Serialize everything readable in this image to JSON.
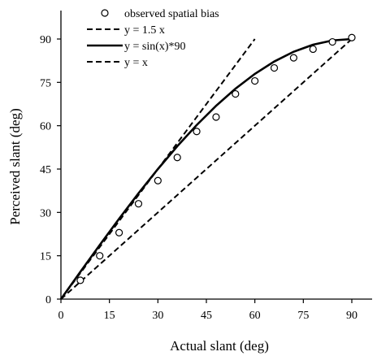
{
  "chart_data": {
    "type": "scatter",
    "xlabel": "Actual slant (deg)",
    "ylabel": "Perceived slant (deg)",
    "xlim": [
      0,
      97
    ],
    "ylim": [
      0,
      97
    ],
    "xticks": [
      0,
      15,
      30,
      45,
      60,
      75,
      90
    ],
    "yticks": [
      0,
      15,
      30,
      45,
      60,
      75,
      90
    ],
    "grid": false,
    "legend_position": "top-left",
    "series": [
      {
        "name": "observed spatial bias",
        "kind": "scatter",
        "marker": "open-circle",
        "color": "#000000",
        "x": [
          6,
          12,
          18,
          24,
          30,
          36,
          42,
          48,
          54,
          60,
          66,
          72,
          78,
          84,
          90
        ],
        "y": [
          6.5,
          15,
          23,
          33,
          41,
          49,
          58,
          63,
          71,
          75.5,
          80,
          83.5,
          86.5,
          89,
          90.5
        ]
      },
      {
        "name": "y = 1.5 x",
        "kind": "line",
        "dash": "dashed",
        "color": "#000000",
        "x": [
          0,
          60
        ],
        "y": [
          0,
          90
        ]
      },
      {
        "name": "y = sin(x)*90",
        "kind": "line",
        "dash": "solid",
        "color": "#000000",
        "x": [
          0,
          6,
          12,
          18,
          24,
          30,
          36,
          42,
          48,
          54,
          60,
          66,
          72,
          78,
          84,
          90
        ],
        "y": [
          0,
          9.41,
          18.71,
          27.81,
          36.61,
          45,
          52.9,
          60.22,
          66.88,
          72.81,
          77.94,
          82.22,
          85.6,
          88.03,
          89.51,
          90
        ]
      },
      {
        "name": "y = x",
        "kind": "line",
        "dash": "dashed",
        "color": "#000000",
        "x": [
          0,
          90
        ],
        "y": [
          0,
          90
        ]
      }
    ]
  }
}
